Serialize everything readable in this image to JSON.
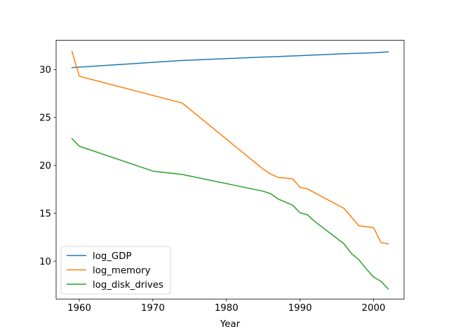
{
  "chart_data": {
    "type": "line",
    "title": "",
    "xlabel": "Year",
    "ylabel": "",
    "xlim": [
      1956.85,
      2004.15
    ],
    "ylim": [
      6.05,
      33.05
    ],
    "xticks": [
      1960,
      1970,
      1980,
      1990,
      2000
    ],
    "yticks": [
      10,
      15,
      20,
      25,
      30
    ],
    "grid": false,
    "legend_position": "lower-left",
    "series": [
      {
        "name": "log_GDP",
        "color": "#1f77b4",
        "x": [
          1959,
          1960,
          1970,
          1974,
          1985,
          1990,
          1996,
          2000,
          2002
        ],
        "y": [
          30.2,
          30.25,
          30.75,
          30.95,
          31.3,
          31.45,
          31.65,
          31.75,
          31.85
        ]
      },
      {
        "name": "log_memory",
        "color": "#ff7f0e",
        "x": [
          1959,
          1960,
          1970,
          1974,
          1985,
          1986,
          1987,
          1989,
          1990,
          1991,
          1996,
          1998,
          2000,
          2001,
          2002
        ],
        "y": [
          31.9,
          29.3,
          27.3,
          26.5,
          19.6,
          19.1,
          18.75,
          18.6,
          17.7,
          17.55,
          15.5,
          13.7,
          13.5,
          11.95,
          11.8
        ]
      },
      {
        "name": "log_disk_drives",
        "color": "#2ca02c",
        "x": [
          1959,
          1960,
          1970,
          1974,
          1985,
          1986,
          1987,
          1989,
          1990,
          1991,
          1992,
          1996,
          1997,
          1998,
          1999,
          2000,
          2001,
          2002
        ],
        "y": [
          22.8,
          22.0,
          19.4,
          19.05,
          17.3,
          17.05,
          16.5,
          15.85,
          15.05,
          14.85,
          14.15,
          11.8,
          10.8,
          10.15,
          9.2,
          8.35,
          7.9,
          7.1
        ]
      }
    ]
  }
}
